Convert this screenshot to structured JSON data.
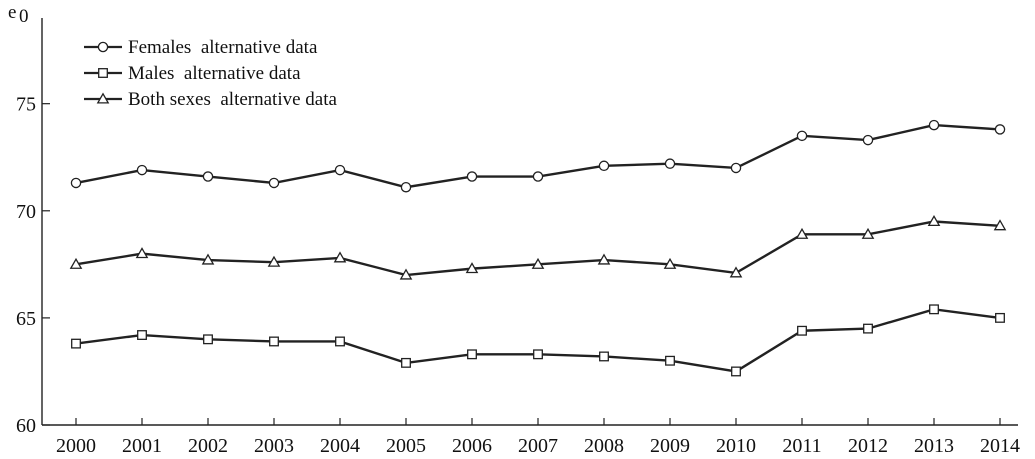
{
  "chart_data": {
    "type": "line",
    "title": "",
    "xlabel": "",
    "ylabel": "e",
    "ylabel_subscript": "0",
    "x": [
      2000,
      2001,
      2002,
      2003,
      2004,
      2005,
      2006,
      2007,
      2008,
      2009,
      2010,
      2011,
      2012,
      2013,
      2014
    ],
    "ylim": [
      60,
      79
    ],
    "yticks": [
      60,
      65,
      70,
      75
    ],
    "grid": false,
    "legend_position": "top-left",
    "series": [
      {
        "name": "Females  alternative data",
        "marker": "circle",
        "values": [
          71.3,
          71.9,
          71.6,
          71.3,
          71.9,
          71.1,
          71.6,
          71.6,
          72.1,
          72.2,
          72.0,
          73.5,
          73.3,
          74.0,
          73.8
        ]
      },
      {
        "name": "Males  alternative data",
        "marker": "square",
        "values": [
          63.8,
          64.2,
          64.0,
          63.9,
          63.9,
          62.9,
          63.3,
          63.3,
          63.2,
          63.0,
          62.5,
          64.4,
          64.5,
          65.4,
          65.0
        ]
      },
      {
        "name": "Both sexes  alternative data",
        "marker": "triangle",
        "values": [
          67.5,
          68.0,
          67.7,
          67.6,
          67.8,
          67.0,
          67.3,
          67.5,
          67.7,
          67.5,
          67.1,
          68.9,
          68.9,
          69.5,
          69.3
        ]
      }
    ],
    "colors": {
      "line": "#222222",
      "marker_fill": "#ffffff"
    }
  }
}
